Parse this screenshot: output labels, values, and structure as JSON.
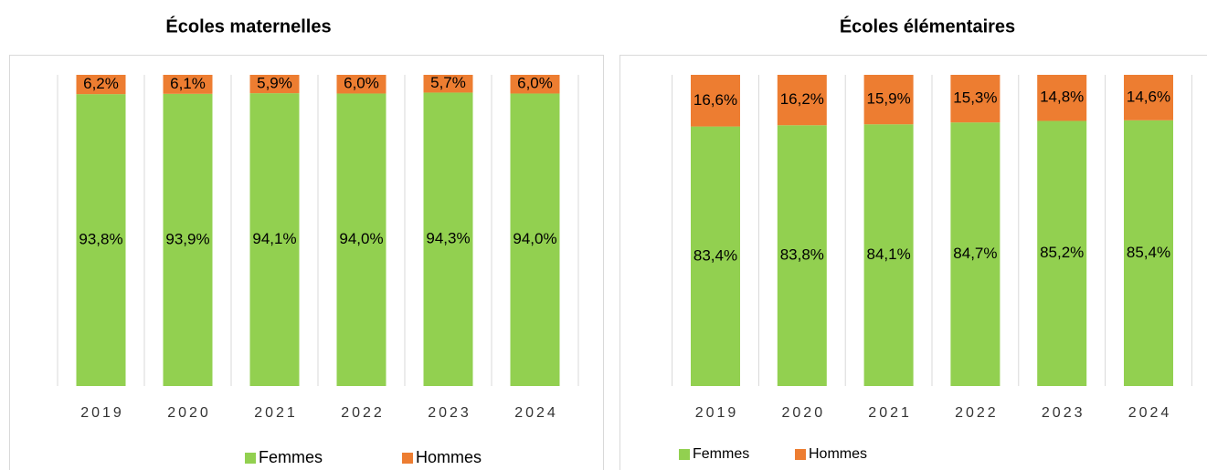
{
  "chart_data": [
    {
      "type": "bar",
      "stacked": true,
      "title": "Écoles maternelles",
      "categories": [
        "2019",
        "2020",
        "2021",
        "2022",
        "2023",
        "2024"
      ],
      "ylim": [
        0,
        100
      ],
      "series": [
        {
          "name": "Femmes",
          "color": "#92d050",
          "values": [
            93.8,
            93.9,
            94.1,
            94.0,
            94.3,
            94.0
          ],
          "value_labels": [
            "93,8%",
            "93,9%",
            "94,1%",
            "94,0%",
            "94,3%",
            "94,0%"
          ]
        },
        {
          "name": "Hommes",
          "color": "#ed7d31",
          "values": [
            6.2,
            6.1,
            5.9,
            6.0,
            5.7,
            6.0
          ],
          "value_labels": [
            "6,2%",
            "6,1%",
            "5,9%",
            "6,0%",
            "5,7%",
            "6,0%"
          ]
        }
      ],
      "legend": "bottom"
    },
    {
      "type": "bar",
      "stacked": true,
      "title": "Écoles élémentaires",
      "categories": [
        "2019",
        "2020",
        "2021",
        "2022",
        "2023",
        "2024"
      ],
      "ylim": [
        0,
        100
      ],
      "series": [
        {
          "name": "Femmes",
          "color": "#92d050",
          "values": [
            83.4,
            83.8,
            84.1,
            84.7,
            85.2,
            85.4
          ],
          "value_labels": [
            "83,4%",
            "83,8%",
            "84,1%",
            "84,7%",
            "85,2%",
            "85,4%"
          ]
        },
        {
          "name": "Hommes",
          "color": "#ed7d31",
          "values": [
            16.6,
            16.2,
            15.9,
            15.3,
            14.8,
            14.6
          ],
          "value_labels": [
            "16,6%",
            "16,2%",
            "15,9%",
            "15,3%",
            "14,8%",
            "14,6%"
          ]
        }
      ],
      "legend": "bottom"
    }
  ]
}
